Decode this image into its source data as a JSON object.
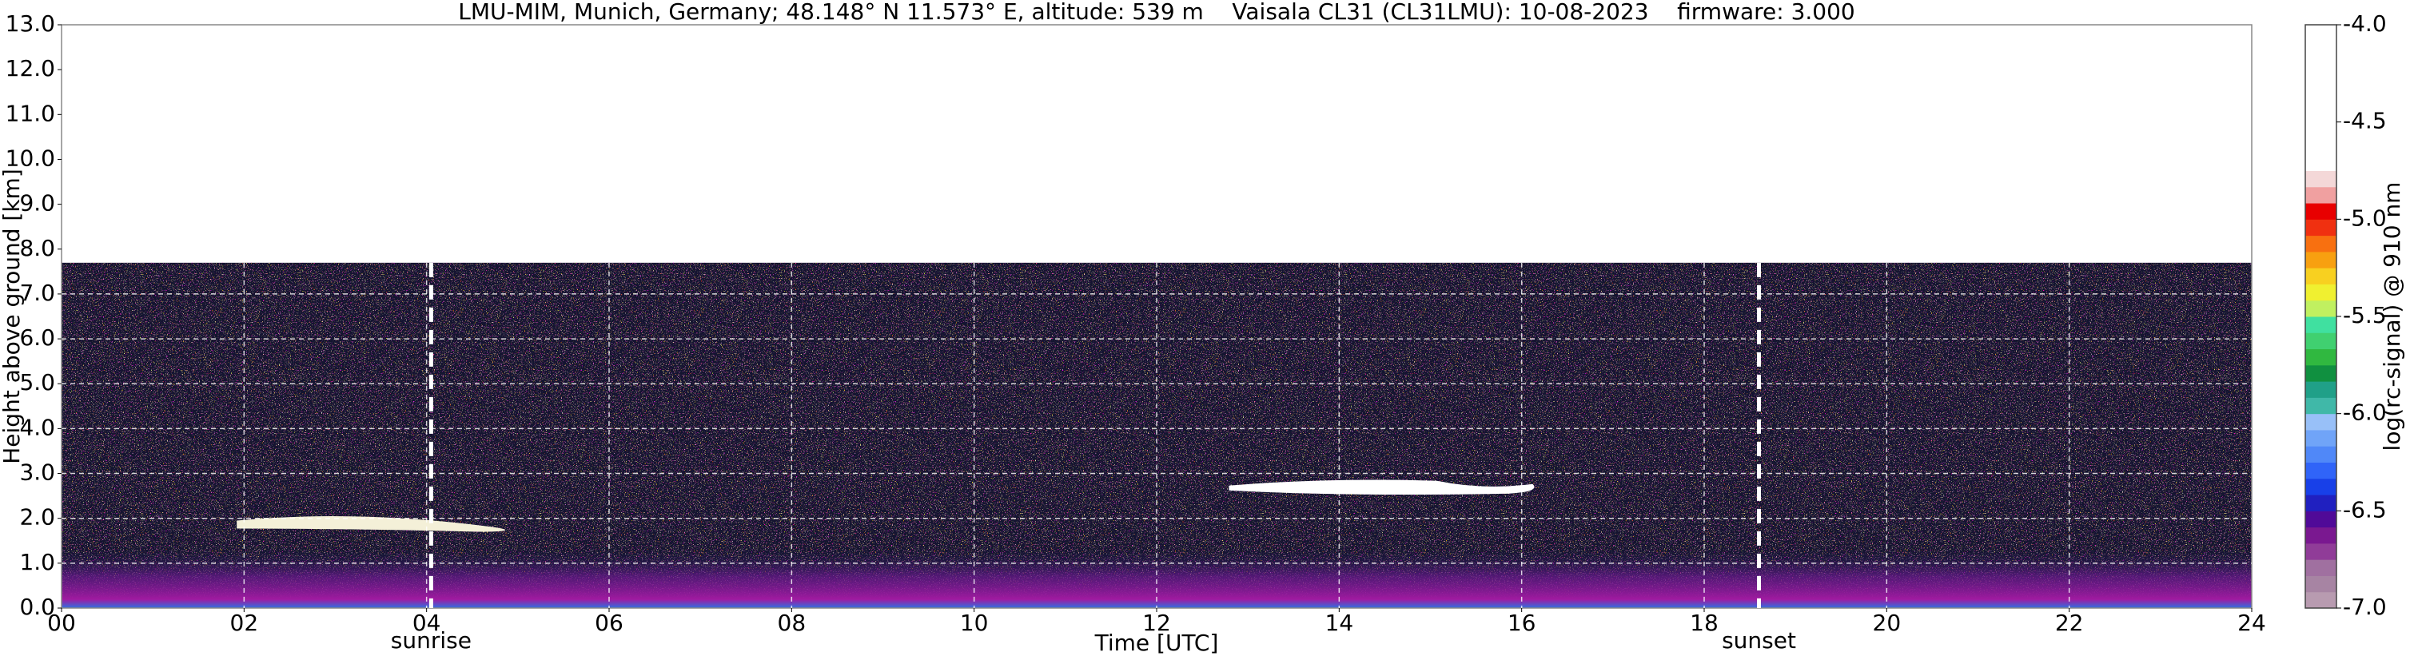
{
  "chart_data": {
    "type": "heatmap",
    "title": "LMU-MIM, Munich, Germany; 48.148° N 11.573° E, altitude: 539 m    Vaisala CL31 (CL31LMU): 10-08-2023    firmware: 3.000",
    "xlabel": "Time [UTC]",
    "ylabel": "Height above ground [km]",
    "colorbar_label": "log(rc-signal) @ 910 nm",
    "xlim": [
      0,
      24
    ],
    "xticks": [
      {
        "value": 0,
        "label": "00"
      },
      {
        "value": 2,
        "label": "02"
      },
      {
        "value": 4,
        "label": "04"
      },
      {
        "value": 6,
        "label": "06"
      },
      {
        "value": 8,
        "label": "08"
      },
      10,
      12,
      14,
      16,
      18,
      20,
      22,
      24
    ],
    "ylim": [
      0,
      13
    ],
    "yticks": [
      {
        "value": 0,
        "label": "0.0"
      },
      {
        "value": 1,
        "label": "1.0"
      },
      {
        "value": 2,
        "label": "2.0"
      },
      {
        "value": 3,
        "label": "3.0"
      },
      {
        "value": 4,
        "label": "4.0"
      },
      {
        "value": 5,
        "label": "5.0"
      },
      {
        "value": 6,
        "label": "6.0"
      },
      {
        "value": 7,
        "label": "7.0"
      },
      {
        "value": 8,
        "label": "8.0"
      },
      {
        "value": 9,
        "label": "9.0"
      },
      {
        "value": 10,
        "label": "10.0"
      },
      {
        "value": 11,
        "label": "11.0"
      },
      {
        "value": 12,
        "label": "12.0"
      },
      {
        "value": 13,
        "label": "13.0"
      }
    ],
    "clim": [
      -7,
      -4
    ],
    "cticks": [
      {
        "value": -7,
        "label": "-7.0"
      },
      -6.5,
      {
        "value": -6,
        "label": "-6.0"
      },
      -5.5,
      {
        "value": -5,
        "label": "-5.0"
      },
      -4.5,
      {
        "value": -4,
        "label": "-4.0"
      }
    ],
    "colormap": [
      "#b89bb0",
      "#a784a3",
      "#a070a0",
      "#903c98",
      "#7a1890",
      "#500a98",
      "#2020c0",
      "#1840e8",
      "#3064f8",
      "#5088f8",
      "#70a4f8",
      "#98c0f8",
      "#40b8a8",
      "#20a088",
      "#109040",
      "#30b840",
      "#40d070",
      "#40e0a0",
      "#c0f060",
      "#f0f030",
      "#f8d020",
      "#f8a010",
      "#f87010",
      "#f03010",
      "#e80000",
      "#f0a0a0",
      "#f4d8d8",
      "#ffffff",
      "#ffffff",
      "#ffffff",
      "#ffffff",
      "#ffffff",
      "#ffffff",
      "#ffffff",
      "#ffffff",
      "#ffffff"
    ],
    "grid": true,
    "annotations": [
      {
        "label": "sunrise",
        "x": 4.05
      },
      {
        "label": "sunset",
        "x": 18.6
      }
    ]
  }
}
